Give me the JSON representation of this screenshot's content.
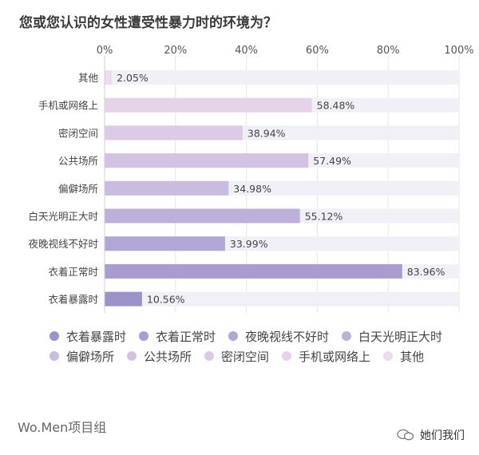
{
  "chart_data": {
    "type": "bar",
    "orientation": "horizontal",
    "title": "您或您认识的女性遭受性暴力时的环境为？",
    "categories": [
      "其他",
      "手机或网络上",
      "密闭空间",
      "公共场所",
      "偏僻场所",
      "白天光明正大时",
      "夜晚视线不好时",
      "衣着正常时",
      "衣着暴露时"
    ],
    "values": [
      2.05,
      58.48,
      38.94,
      57.49,
      34.98,
      55.12,
      33.99,
      83.96,
      10.56
    ],
    "value_labels": [
      "2.05%",
      "58.48%",
      "38.94%",
      "57.49%",
      "34.98%",
      "55.12%",
      "33.99%",
      "83.96%",
      "10.56%"
    ],
    "xlim": [
      0,
      100
    ],
    "x_ticks": [
      "0%",
      "20%",
      "40%",
      "60%",
      "80%",
      "100%"
    ],
    "x_tick_values": [
      0,
      20,
      40,
      60,
      80,
      100
    ],
    "grid": true,
    "legend_position": "bottom",
    "colors": [
      "#ecdcec",
      "#e6d3e9",
      "#dccbe6",
      "#d2c3e3",
      "#c9bce0",
      "#bdb1da",
      "#b2a6d5",
      "#a89cd0",
      "#9d91ca"
    ],
    "track_color": "#f1f0f7",
    "legend": [
      {
        "label": "衣着暴露时",
        "color": "#9d91ca"
      },
      {
        "label": "衣着正常时",
        "color": "#a89cd0"
      },
      {
        "label": "夜晚视线不好时",
        "color": "#b2a6d5"
      },
      {
        "label": "白天光明正大时",
        "color": "#bdb1da"
      },
      {
        "label": "偏僻场所",
        "color": "#c9bce0"
      },
      {
        "label": "公共场所",
        "color": "#d2c3e3"
      },
      {
        "label": "密闭空间",
        "color": "#dccbe6"
      },
      {
        "label": "手机或网络上",
        "color": "#e6d3e9"
      },
      {
        "label": "其他",
        "color": "#ecdcec"
      }
    ]
  },
  "footer": {
    "source": "Wo.Men项目组",
    "account": "她们我们",
    "account_icon": "wechat-icon"
  }
}
